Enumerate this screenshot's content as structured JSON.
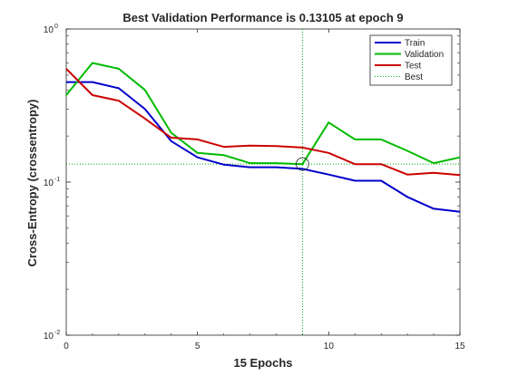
{
  "chart_data": {
    "type": "line",
    "title": "Best Validation Performance is 0.13105 at epoch 9",
    "xlabel": "15 Epochs",
    "ylabel": "Cross-Entropy  (crossentropy)",
    "xlim": [
      0,
      15
    ],
    "ylim": [
      0.01,
      1
    ],
    "yscale": "log",
    "xticks": [
      0,
      5,
      10,
      15
    ],
    "yticks": [
      {
        "value": 0.01,
        "base": "10",
        "exp": "-2"
      },
      {
        "value": 0.1,
        "base": "10",
        "exp": "-1"
      },
      {
        "value": 1,
        "base": "10",
        "exp": "0"
      }
    ],
    "grid": false,
    "legend_position": "top-right",
    "x": [
      0,
      1,
      2,
      3,
      4,
      5,
      6,
      7,
      8,
      9,
      10,
      11,
      12,
      13,
      14,
      15
    ],
    "series": [
      {
        "name": "Train",
        "color": "#0000cc",
        "style": "solid",
        "values": [
          0.45,
          0.45,
          0.41,
          0.3,
          0.185,
          0.145,
          0.13,
          0.125,
          0.125,
          0.122,
          0.112,
          0.102,
          0.102,
          0.08,
          0.067,
          0.064
        ]
      },
      {
        "name": "Validation",
        "color": "#00bb00",
        "style": "solid",
        "values": [
          0.37,
          0.6,
          0.55,
          0.4,
          0.21,
          0.155,
          0.15,
          0.133,
          0.133,
          0.131,
          0.245,
          0.19,
          0.19,
          0.16,
          0.133,
          0.145
        ]
      },
      {
        "name": "Test",
        "color": "#cc0000",
        "style": "solid",
        "values": [
          0.55,
          0.37,
          0.34,
          0.26,
          0.195,
          0.19,
          0.17,
          0.173,
          0.172,
          0.168,
          0.155,
          0.131,
          0.131,
          0.112,
          0.115,
          0.111
        ]
      },
      {
        "name": "Best",
        "color": "#00aa00",
        "style": "dotted",
        "best_epoch": 9,
        "best_value": 0.13105
      }
    ]
  }
}
